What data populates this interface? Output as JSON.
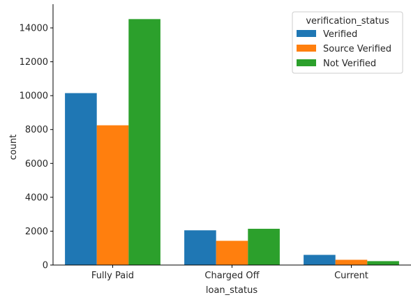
{
  "chart_data": {
    "type": "bar",
    "title": "",
    "xlabel": "loan_status",
    "ylabel": "count",
    "categories": [
      "Fully Paid",
      "Charged Off",
      "Current"
    ],
    "series": [
      {
        "name": "Verified",
        "color": "#1f77b4",
        "values": [
          10150,
          2050,
          600
        ]
      },
      {
        "name": "Source Verified",
        "color": "#ff7f0e",
        "values": [
          8250,
          1430,
          310
        ]
      },
      {
        "name": "Not Verified",
        "color": "#2ca02c",
        "values": [
          14520,
          2140,
          230
        ]
      }
    ],
    "ylim": [
      0,
      15400
    ],
    "yticks": [
      0,
      2000,
      4000,
      6000,
      8000,
      10000,
      12000,
      14000
    ],
    "legend": {
      "title": "verification_status",
      "placement": "top-right"
    },
    "grid": false
  }
}
